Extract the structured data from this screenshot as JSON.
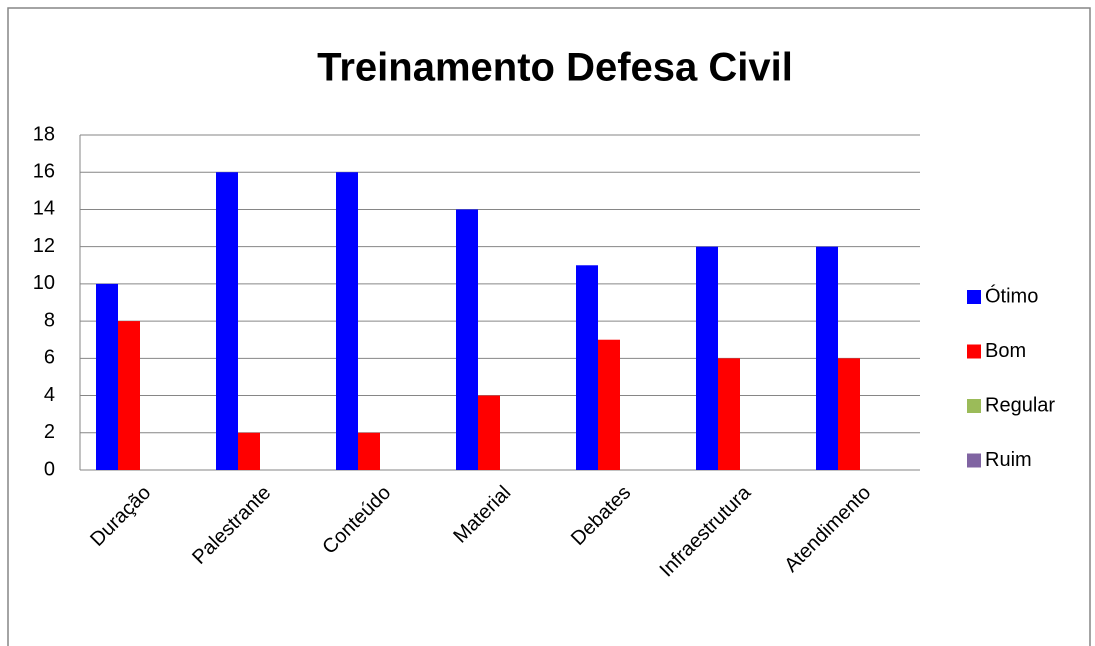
{
  "chart_data": {
    "type": "bar",
    "title": "Treinamento Defesa Civil",
    "categories": [
      "Duração",
      "Palestrante",
      "Conteúdo",
      "Material",
      "Debates",
      "Infraestrutura",
      "Atendimento"
    ],
    "series": [
      {
        "name": "Ótimo",
        "color": "#0000ff",
        "values": [
          10,
          16,
          16,
          14,
          11,
          12,
          12
        ]
      },
      {
        "name": "Bom",
        "color": "#ff0000",
        "values": [
          8,
          2,
          2,
          4,
          7,
          6,
          6
        ]
      },
      {
        "name": "Regular",
        "color": "#9bbb59",
        "values": [
          0,
          0,
          0,
          0,
          0,
          0,
          0
        ]
      },
      {
        "name": "Ruim",
        "color": "#8064a2",
        "values": [
          0,
          0,
          0,
          0,
          0,
          0,
          0
        ]
      }
    ],
    "ylim": [
      0,
      18
    ],
    "yticks": [
      0,
      2,
      4,
      6,
      8,
      10,
      12,
      14,
      16,
      18
    ],
    "grid": true,
    "legend": "right"
  }
}
